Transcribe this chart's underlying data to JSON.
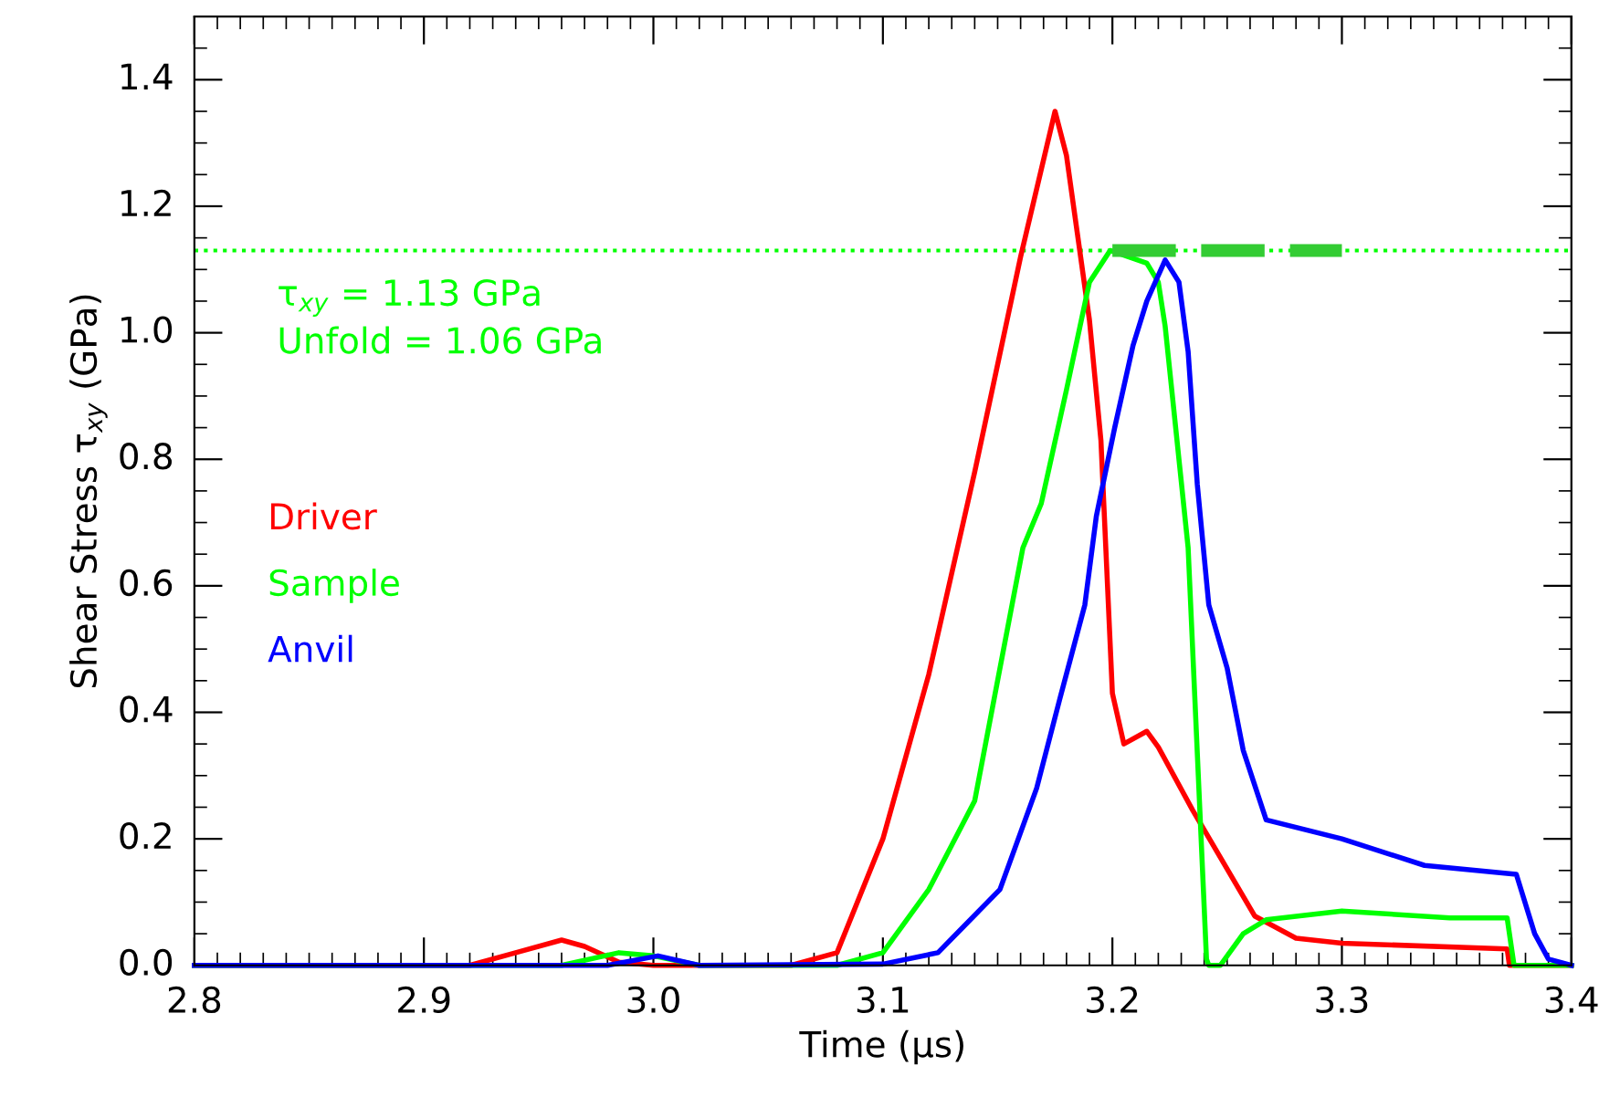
{
  "chart_data": {
    "type": "line",
    "xlabel": "Time (μs)",
    "ylabel": "Shear Stress τ$_{xy}$ (GPa)",
    "xlim": [
      2.8,
      3.4
    ],
    "xticks": [
      2.8,
      {
        "value": 2.81,
        "label": null
      },
      {
        "value": 2.82,
        "label": null
      },
      {
        "value": 2.83,
        "label": null
      },
      {
        "value": 2.84,
        "label": null
      },
      {
        "value": 2.85,
        "label": null
      },
      {
        "value": 2.86,
        "label": null
      },
      {
        "value": 2.87,
        "label": null
      },
      {
        "value": 2.88,
        "label": null
      },
      {
        "value": 2.89,
        "label": null
      },
      2.9,
      {
        "value": 2.91,
        "label": null
      },
      {
        "value": 2.92,
        "label": null
      },
      {
        "value": 2.93,
        "label": null
      },
      {
        "value": 2.94,
        "label": null
      },
      {
        "value": 2.95,
        "label": null
      },
      {
        "value": 2.96,
        "label": null
      },
      {
        "value": 2.97,
        "label": null
      },
      {
        "value": 2.98,
        "label": null
      },
      {
        "value": 2.99,
        "label": null
      },
      {
        "value": 3,
        "label": "3.0"
      },
      {
        "value": 3.01,
        "label": null
      },
      {
        "value": 3.02,
        "label": null
      },
      {
        "value": 3.03,
        "label": null
      },
      {
        "value": 3.04,
        "label": null
      },
      {
        "value": 3.05,
        "label": null
      },
      {
        "value": 3.06,
        "label": null
      },
      {
        "value": 3.07,
        "label": null
      },
      {
        "value": 3.08,
        "label": null
      },
      {
        "value": 3.09,
        "label": null
      },
      3.1,
      {
        "value": 3.11,
        "label": null
      },
      {
        "value": 3.12,
        "label": null
      },
      {
        "value": 3.13,
        "label": null
      },
      {
        "value": 3.14,
        "label": null
      },
      {
        "value": 3.15,
        "label": null
      },
      {
        "value": 3.16,
        "label": null
      },
      {
        "value": 3.17,
        "label": null
      },
      {
        "value": 3.18,
        "label": null
      },
      {
        "value": 3.19,
        "label": null
      },
      3.2,
      {
        "value": 3.21,
        "label": null
      },
      {
        "value": 3.22,
        "label": null
      },
      {
        "value": 3.23,
        "label": null
      },
      {
        "value": 3.24,
        "label": null
      },
      {
        "value": 3.25,
        "label": null
      },
      {
        "value": 3.26,
        "label": null
      },
      {
        "value": 3.27,
        "label": null
      },
      {
        "value": 3.28,
        "label": null
      },
      {
        "value": 3.29,
        "label": null
      },
      3.3,
      {
        "value": 3.31,
        "label": null
      },
      {
        "value": 3.32,
        "label": null
      },
      {
        "value": 3.33,
        "label": null
      },
      {
        "value": 3.34,
        "label": null
      },
      {
        "value": 3.35,
        "label": null
      },
      {
        "value": 3.36,
        "label": null
      },
      {
        "value": 3.37,
        "label": null
      },
      {
        "value": 3.38,
        "label": null
      },
      {
        "value": 3.39,
        "label": null
      },
      3.4
    ],
    "ylim": [
      0,
      1.5
    ],
    "yticks": [
      {
        "value": 0,
        "label": "0.0"
      },
      {
        "value": 0.05,
        "label": null
      },
      {
        "value": 0.1,
        "label": null
      },
      {
        "value": 0.15,
        "label": null
      },
      0.2,
      {
        "value": 0.25,
        "label": null
      },
      {
        "value": 0.3,
        "label": null
      },
      {
        "value": 0.35,
        "label": null
      },
      0.4,
      {
        "value": 0.45,
        "label": null
      },
      {
        "value": 0.5,
        "label": null
      },
      {
        "value": 0.55,
        "label": null
      },
      0.6,
      {
        "value": 0.65,
        "label": null
      },
      {
        "value": 0.7,
        "label": null
      },
      {
        "value": 0.75,
        "label": null
      },
      0.8,
      {
        "value": 0.85,
        "label": null
      },
      {
        "value": 0.9,
        "label": null
      },
      {
        "value": 0.95,
        "label": null
      },
      {
        "value": 1,
        "label": "1.0"
      },
      {
        "value": 1.05,
        "label": null
      },
      {
        "value": 1.1,
        "label": null
      },
      {
        "value": 1.15,
        "label": null
      },
      1.2,
      {
        "value": 1.25,
        "label": null
      },
      {
        "value": 1.3,
        "label": null
      },
      {
        "value": 1.35,
        "label": null
      },
      1.4,
      {
        "value": 1.45,
        "label": null
      },
      {
        "value": 1.5,
        "label": null
      }
    ],
    "grid": false,
    "legend": "left",
    "marker": "none",
    "line_style": "solid",
    "annotations": [
      "τ$_{xy}$ = 1.13 GPa",
      "Unfold = 1.06 GPa"
    ],
    "ref_lines": [
      {
        "axis": "y",
        "value": 1.13,
        "label": null,
        "color": "#00ff00",
        "line_style": "dotted"
      }
    ],
    "series": [
      {
        "name": "Driver",
        "color": "#ff0000",
        "x": [
          2.8,
          2.92,
          2.94,
          2.96,
          2.97,
          2.985,
          3.0,
          3.06,
          3.08,
          3.1,
          3.12,
          3.14,
          3.16,
          3.175,
          3.18,
          3.19,
          3.195,
          3.2,
          3.205,
          3.215,
          3.22,
          3.235,
          3.262,
          3.28,
          3.3,
          3.372,
          3.373,
          3.4
        ],
        "values": [
          0,
          0,
          0.02,
          0.04,
          0.03,
          0.005,
          0,
          0,
          0.02,
          0.2,
          0.46,
          0.78,
          1.12,
          1.35,
          1.28,
          1.02,
          0.83,
          0.43,
          0.35,
          0.37,
          0.345,
          0.245,
          0.078,
          0.043,
          0.035,
          0.026,
          0,
          0
        ]
      },
      {
        "name": "Sample",
        "color": "#00ff00",
        "x": [
          2.8,
          2.96,
          2.985,
          3.0,
          3.02,
          3.08,
          3.1,
          3.12,
          3.14,
          3.161,
          3.169,
          3.18,
          3.19,
          3.199,
          3.215,
          3.22,
          3.223,
          3.233,
          3.241,
          3.242,
          3.247,
          3.257,
          3.267,
          3.3,
          3.347,
          3.372,
          3.375,
          3.4
        ],
        "values": [
          0,
          0,
          0.02,
          0.015,
          0,
          0,
          0.02,
          0.12,
          0.26,
          0.66,
          0.73,
          0.91,
          1.08,
          1.13,
          1.11,
          1.08,
          1.01,
          0.66,
          0.01,
          0,
          0,
          0.05,
          0.072,
          0.086,
          0.075,
          0.075,
          0,
          0
        ]
      },
      {
        "name": "Anvil",
        "color": "#0000ff",
        "x": [
          2.8,
          2.98,
          3.002,
          3.02,
          3.1,
          3.124,
          3.151,
          3.167,
          3.177,
          3.188,
          3.193,
          3.201,
          3.209,
          3.215,
          3.223,
          3.229,
          3.233,
          3.237,
          3.242,
          3.25,
          3.257,
          3.267,
          3.3,
          3.336,
          3.376,
          3.384,
          3.39,
          3.4
        ],
        "values": [
          0,
          0,
          0.015,
          0,
          0.002,
          0.02,
          0.12,
          0.28,
          0.42,
          0.57,
          0.71,
          0.85,
          0.98,
          1.05,
          1.115,
          1.08,
          0.97,
          0.76,
          0.57,
          0.47,
          0.34,
          0.23,
          0.2,
          0.158,
          0.144,
          0.05,
          0.01,
          0
        ]
      },
      {
        "color": "#33cc33",
        "line_style": "dashed",
        "x": [
          3.2,
          3.3
        ],
        "values": [
          1.13,
          1.13
        ]
      }
    ]
  }
}
